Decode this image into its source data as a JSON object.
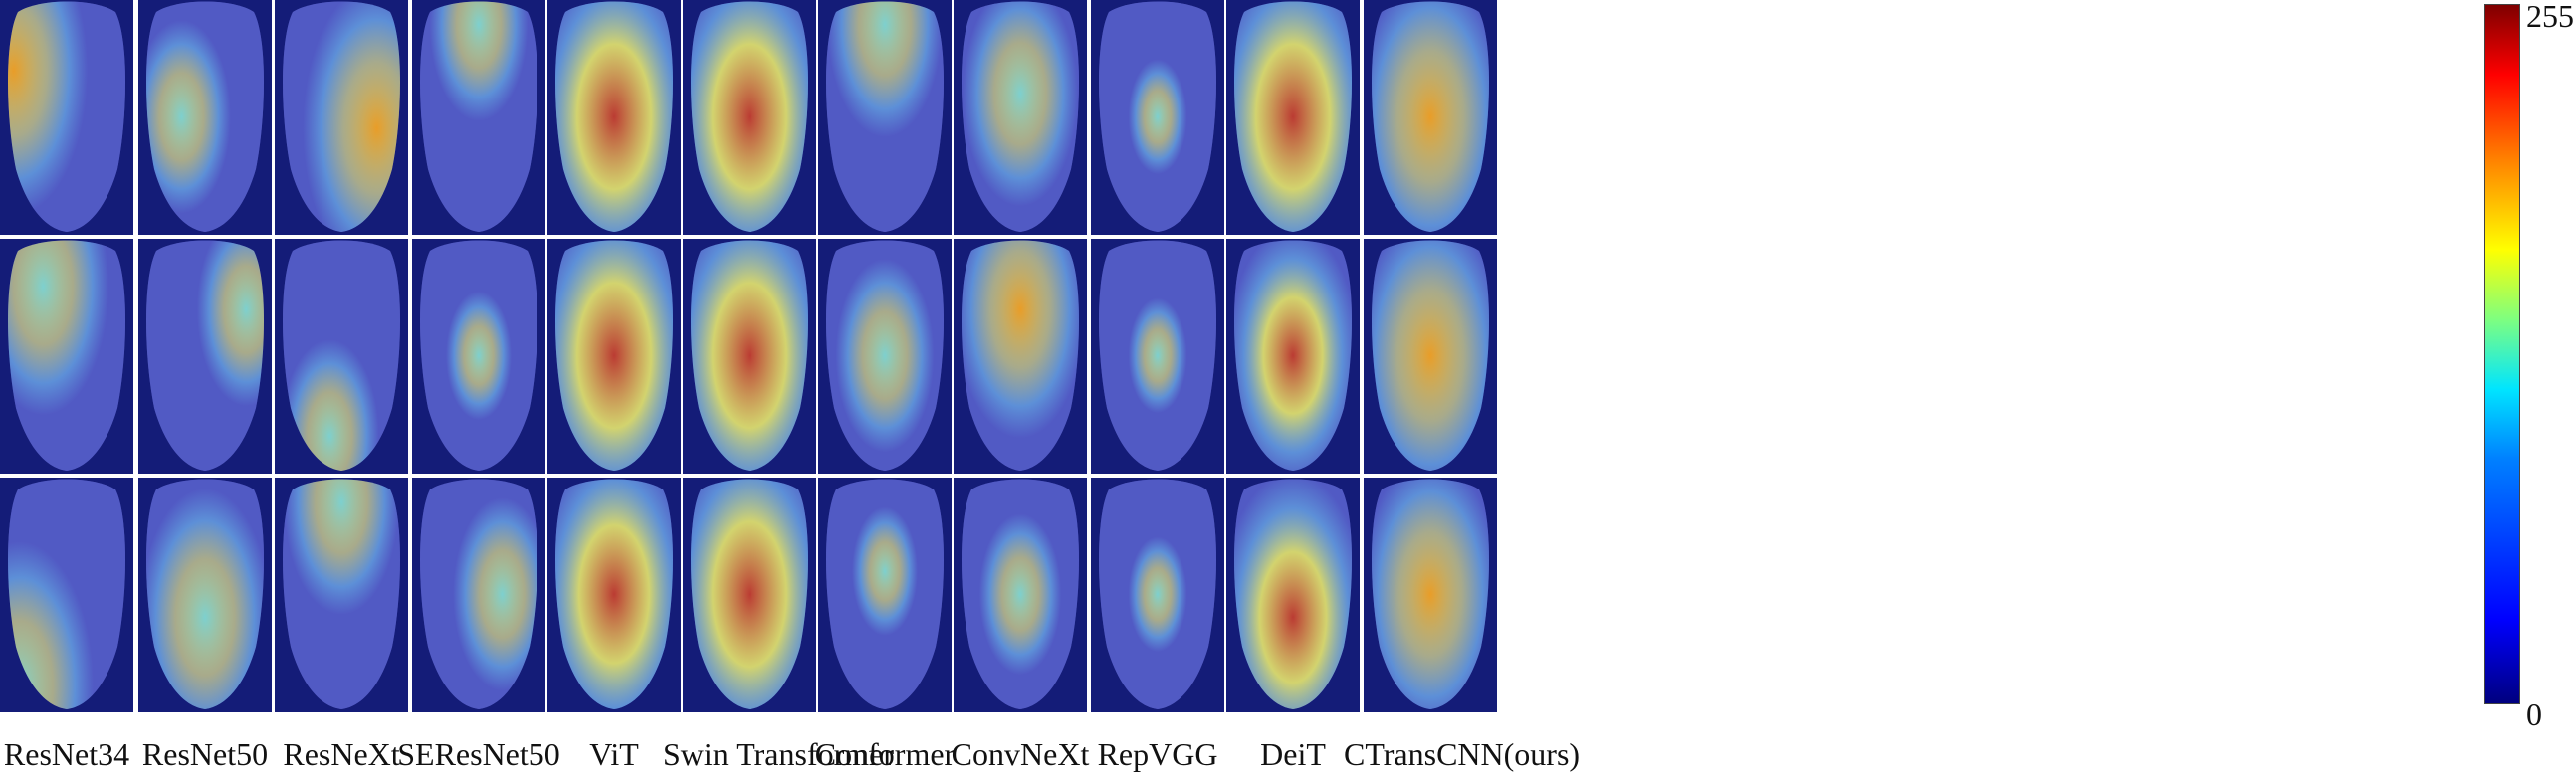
{
  "figure": {
    "columns": [
      {
        "label": "ResNet34",
        "kind": "cnn",
        "heat": [
          [
            0.05,
            0.3,
            0.9,
            0.9
          ],
          [
            0.3,
            0.2,
            0.8,
            0.7
          ],
          [
            0.1,
            0.9,
            0.9,
            0.6
          ]
        ]
      },
      {
        "label": "ResNet50",
        "kind": "cnn",
        "heat": [
          [
            0.3,
            0.5,
            0.6,
            0.6
          ],
          [
            0.85,
            0.3,
            0.6,
            0.6
          ],
          [
            0.5,
            0.6,
            0.8,
            0.6
          ]
        ]
      },
      {
        "label": "ResNeXt",
        "kind": "cnn",
        "heat": [
          [
            0.8,
            0.55,
            0.9,
            0.8
          ],
          [
            0.4,
            0.85,
            0.6,
            0.7
          ],
          [
            0.5,
            0.1,
            0.7,
            0.6
          ]
        ]
      },
      {
        "label": "SEResNet50",
        "kind": "cnn",
        "heat": [
          [
            0.5,
            0.1,
            0.6,
            0.5
          ],
          [
            0.5,
            0.5,
            0.4,
            0.4
          ],
          [
            0.7,
            0.5,
            0.6,
            0.5
          ]
        ]
      },
      {
        "label": "ViT",
        "kind": "transformer",
        "heat": [
          [
            0.5,
            0.5,
            1.0,
            0.95
          ],
          [
            0.5,
            0.5,
            1.0,
            0.95
          ],
          [
            0.5,
            0.5,
            0.95,
            0.8
          ]
        ]
      },
      {
        "label": "Swin Transformer",
        "kind": "transformer",
        "heat": [
          [
            0.5,
            0.5,
            1.0,
            0.95
          ],
          [
            0.5,
            0.5,
            1.0,
            0.95
          ],
          [
            0.5,
            0.5,
            1.0,
            0.95
          ]
        ]
      },
      {
        "label": "Conformer",
        "kind": "cnn",
        "heat": [
          [
            0.5,
            0.1,
            0.7,
            0.6
          ],
          [
            0.5,
            0.5,
            0.6,
            0.7
          ],
          [
            0.5,
            0.4,
            0.4,
            0.5
          ]
        ]
      },
      {
        "label": "ConvNeXt",
        "kind": "cnn",
        "heat": [
          [
            0.5,
            0.4,
            0.7,
            0.7
          ],
          [
            0.5,
            0.3,
            0.8,
            0.8
          ],
          [
            0.5,
            0.5,
            0.5,
            0.5
          ]
        ]
      },
      {
        "label": "RepVGG",
        "kind": "cnn",
        "heat": [
          [
            0.5,
            0.5,
            0.2,
            0.3
          ],
          [
            0.5,
            0.5,
            0.2,
            0.3
          ],
          [
            0.5,
            0.5,
            0.2,
            0.3
          ]
        ]
      },
      {
        "label": "DeiT",
        "kind": "transformer",
        "heat": [
          [
            0.5,
            0.5,
            1.0,
            1.0
          ],
          [
            0.5,
            0.5,
            0.8,
            0.8
          ],
          [
            0.5,
            0.6,
            0.9,
            0.9
          ]
        ]
      },
      {
        "label": "CTransCNN(ours)",
        "kind": "cnn",
        "heat": [
          [
            0.5,
            0.5,
            0.9,
            0.85
          ],
          [
            0.5,
            0.5,
            0.9,
            0.85
          ],
          [
            0.5,
            0.5,
            0.85,
            0.8
          ]
        ]
      }
    ],
    "colorbar": {
      "max_label": "255",
      "min_label": "0"
    }
  }
}
